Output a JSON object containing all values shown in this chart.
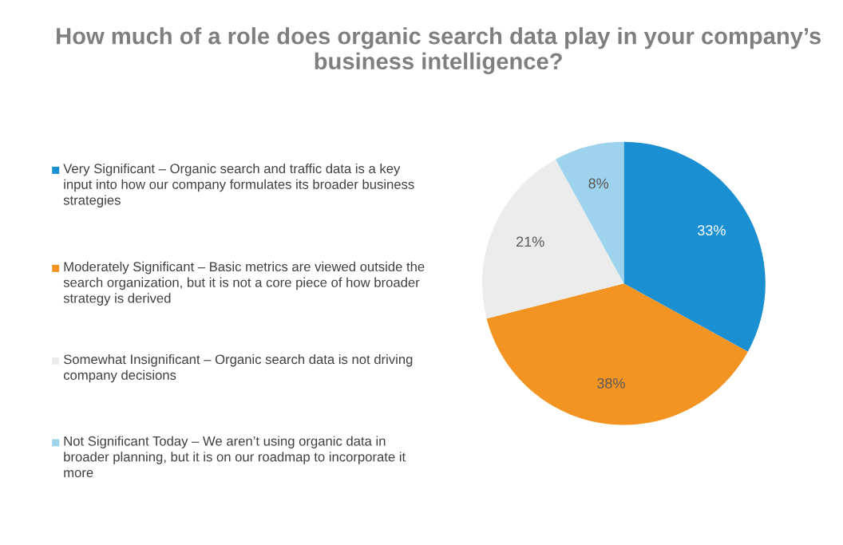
{
  "chart_data": {
    "type": "pie",
    "title": "How much of a role does organic search data play in your company’s business intelligence?",
    "categories": [
      "Very Significant – Organic search and traffic data is a key input into how our company formulates its broader business strategies",
      "Moderately Significant – Basic metrics are viewed outside the search organization, but it is not a core piece of how broader strategy is derived",
      "Somewhat Insignificant – Organic search data is not driving company decisions",
      "Not Significant Today – We aren’t using organic data in broader planning, but it is on our roadmap to incorporate it more"
    ],
    "values": [
      33,
      38,
      21,
      8
    ],
    "colors": [
      "#1a8fd1",
      "#f39422",
      "#ececec",
      "#9dd3ec"
    ],
    "value_labels": [
      "33%",
      "38%",
      "21%",
      "8%"
    ],
    "legend": "left"
  }
}
